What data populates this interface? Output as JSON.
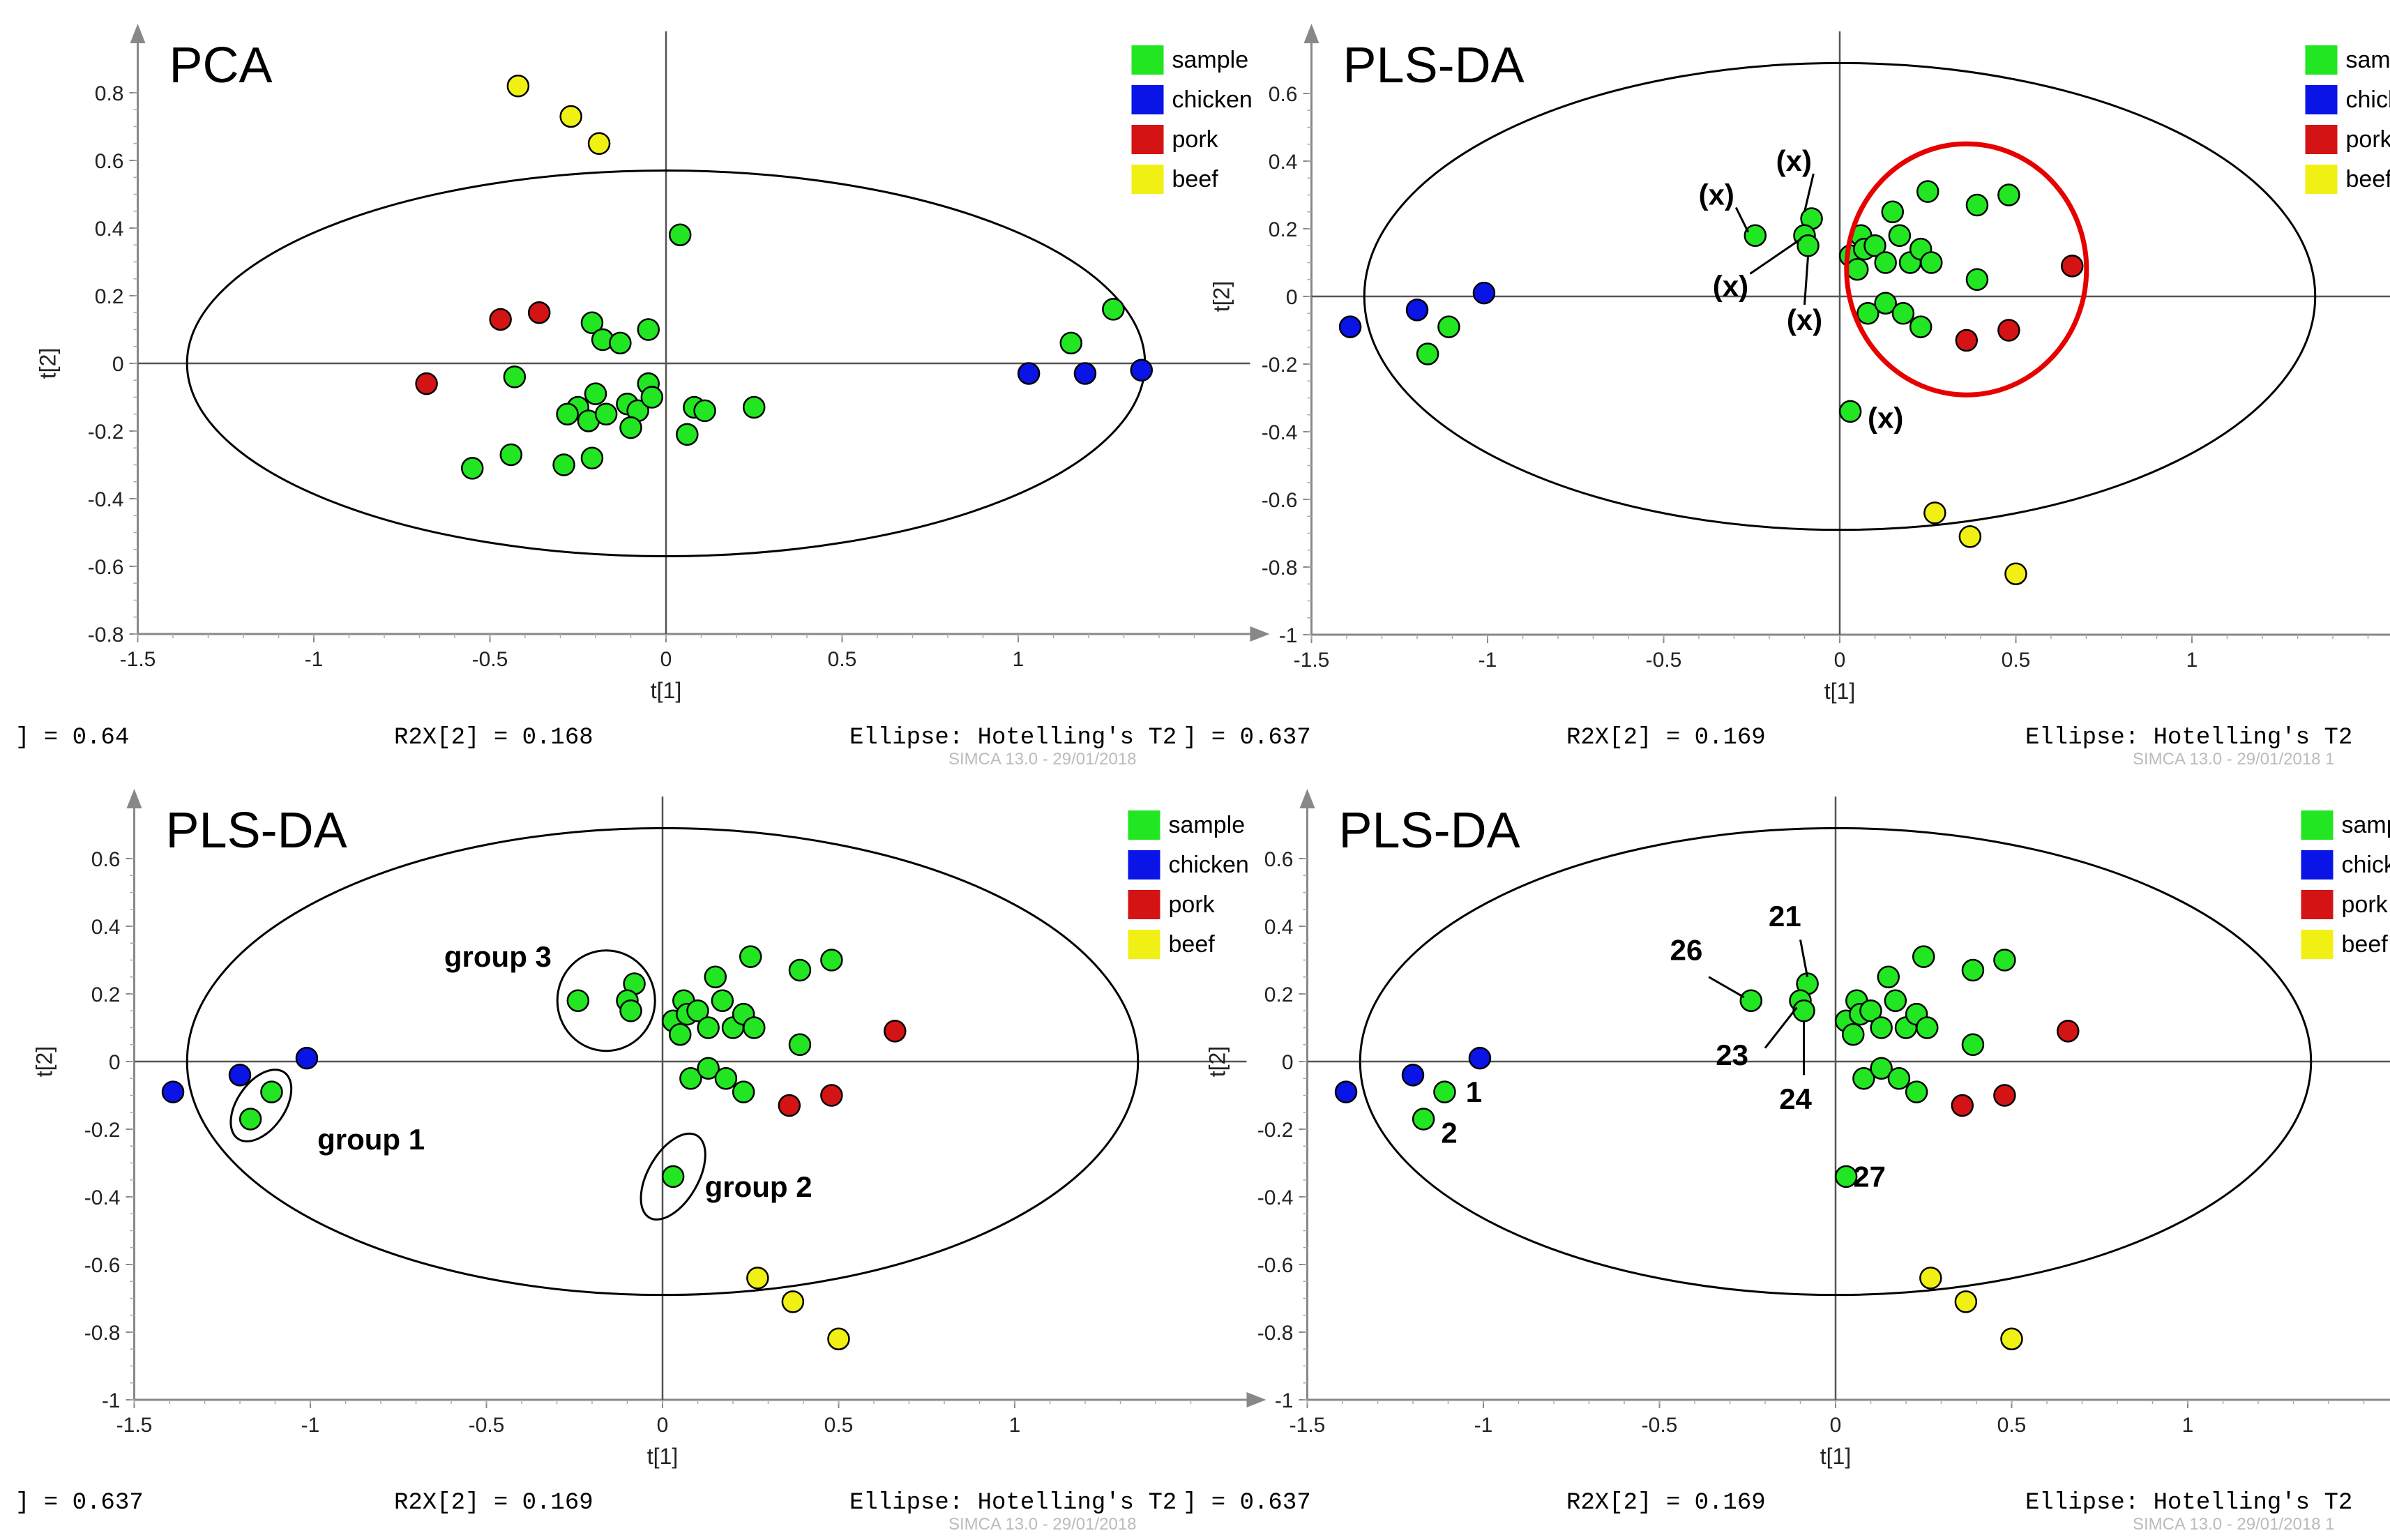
{
  "colors": {
    "sample": "#22e622",
    "chicken": "#0a14e6",
    "pork": "#d41414",
    "beef": "#f0f014",
    "pc_ellipse": "#e60000"
  },
  "chart_data": [
    {
      "type": "scatter",
      "title": "PCA",
      "xlabel": "t[1]",
      "ylabel": "t[2]",
      "xlim": [
        -1.5,
        1.5
      ],
      "ylim": [
        -0.8,
        0.8
      ],
      "xticks": [
        "-1.5",
        "-1",
        "-0.5",
        "0",
        "0.5",
        "1"
      ],
      "yticks": [
        "0.8",
        "0.6",
        "0.4",
        "0.2",
        "0",
        "-0.2",
        "-0.4",
        "-0.6",
        "-0.8"
      ],
      "legend": [
        "sample",
        "chicken",
        "pork",
        "beef"
      ],
      "footer": {
        "left": "] = 0.64",
        "mid": "R2X[2] = 0.168",
        "right": "Ellipse: Hotelling's T2",
        "watermark": "SIMCA 13.0 - 29/01/2018"
      },
      "ellipse": {
        "cx": 0,
        "cy": 0,
        "rx": 1.36,
        "ry": 0.57
      },
      "series": [
        {
          "name": "sample",
          "points": [
            [
              0.04,
              0.38
            ],
            [
              -0.21,
              0.12
            ],
            [
              -0.18,
              0.07
            ],
            [
              -0.13,
              0.06
            ],
            [
              -0.05,
              0.1
            ],
            [
              -0.43,
              -0.04
            ],
            [
              -0.2,
              -0.09
            ],
            [
              -0.25,
              -0.13
            ],
            [
              -0.28,
              -0.15
            ],
            [
              -0.22,
              -0.17
            ],
            [
              -0.17,
              -0.15
            ],
            [
              -0.11,
              -0.12
            ],
            [
              -0.08,
              -0.14
            ],
            [
              -0.1,
              -0.19
            ],
            [
              -0.05,
              -0.06
            ],
            [
              -0.04,
              -0.1
            ],
            [
              0.08,
              -0.13
            ],
            [
              0.11,
              -0.14
            ],
            [
              0.06,
              -0.21
            ],
            [
              0.25,
              -0.13
            ],
            [
              -0.44,
              -0.27
            ],
            [
              -0.55,
              -0.31
            ],
            [
              -0.29,
              -0.3
            ],
            [
              -0.21,
              -0.28
            ],
            [
              1.15,
              0.06
            ],
            [
              1.27,
              0.16
            ]
          ]
        },
        {
          "name": "chicken",
          "points": [
            [
              1.03,
              -0.03
            ],
            [
              1.19,
              -0.03
            ],
            [
              1.35,
              -0.02
            ]
          ]
        },
        {
          "name": "pork",
          "points": [
            [
              -0.47,
              0.13
            ],
            [
              -0.36,
              0.15
            ],
            [
              -0.68,
              -0.06
            ]
          ]
        },
        {
          "name": "beef",
          "points": [
            [
              -0.42,
              0.82
            ],
            [
              -0.27,
              0.73
            ],
            [
              -0.19,
              0.65
            ]
          ]
        }
      ]
    },
    {
      "type": "scatter",
      "title": "PLS-DA",
      "xlabel": "t[1]",
      "ylabel": "t[2]",
      "xlim": [
        -1.5,
        1.5
      ],
      "ylim": [
        -1,
        0.6
      ],
      "xticks": [
        "-1.5",
        "-1",
        "-0.5",
        "0",
        "0.5",
        "1"
      ],
      "yticks": [
        "0.6",
        "0.4",
        "0.2",
        "0",
        "-0.2",
        "-0.4",
        "-0.6",
        "-0.8",
        "-1"
      ],
      "legend": [
        "sample",
        "chicken",
        "pork",
        "beef"
      ],
      "footer": {
        "left": "] = 0.637",
        "mid": "R2X[2] = 0.169",
        "right": "Ellipse: Hotelling's T2",
        "watermark": "SIMCA 13.0 - 29/01/2018 1"
      },
      "ellipse": {
        "cx": 0,
        "cy": 0,
        "rx": 1.35,
        "ry": 0.69
      },
      "series": [
        {
          "name": "sample",
          "points": [
            [
              -0.24,
              0.18
            ],
            [
              -0.08,
              0.23
            ],
            [
              -0.1,
              0.18
            ],
            [
              -0.09,
              0.15
            ],
            [
              0.03,
              0.12
            ],
            [
              0.06,
              0.18
            ],
            [
              0.07,
              0.14
            ],
            [
              0.05,
              0.08
            ],
            [
              0.1,
              0.15
            ],
            [
              0.13,
              0.1
            ],
            [
              0.17,
              0.18
            ],
            [
              0.15,
              0.25
            ],
            [
              0.25,
              0.31
            ],
            [
              0.39,
              0.27
            ],
            [
              0.48,
              0.3
            ],
            [
              0.2,
              0.1
            ],
            [
              0.23,
              0.14
            ],
            [
              0.26,
              0.1
            ],
            [
              0.39,
              0.05
            ],
            [
              0.08,
              -0.05
            ],
            [
              0.13,
              -0.02
            ],
            [
              0.18,
              -0.05
            ],
            [
              0.23,
              -0.09
            ],
            [
              0.03,
              -0.34
            ],
            [
              -1.11,
              -0.09
            ],
            [
              -1.17,
              -0.17
            ]
          ]
        },
        {
          "name": "chicken",
          "points": [
            [
              -1.39,
              -0.09
            ],
            [
              -1.2,
              -0.04
            ],
            [
              -1.01,
              0.01
            ]
          ]
        },
        {
          "name": "pork",
          "points": [
            [
              0.66,
              0.09
            ],
            [
              0.48,
              -0.1
            ],
            [
              0.36,
              -0.13
            ]
          ]
        },
        {
          "name": "beef",
          "points": [
            [
              0.27,
              -0.64
            ],
            [
              0.37,
              -0.71
            ],
            [
              0.5,
              -0.82
            ]
          ]
        }
      ],
      "annotations": [
        "(x)",
        "(x)",
        "(x)",
        "(x)",
        "(x)"
      ]
    },
    {
      "type": "scatter",
      "title": "PLS-DA",
      "xlabel": "t[1]",
      "ylabel": "t[2]",
      "xlim": [
        -1.5,
        1.5
      ],
      "ylim": [
        -1,
        0.6
      ],
      "xticks": [
        "-1.5",
        "-1",
        "-0.5",
        "0",
        "0.5",
        "1"
      ],
      "yticks": [
        "0.6",
        "0.4",
        "0.2",
        "0",
        "-0.2",
        "-0.4",
        "-0.6",
        "-0.8",
        "-1"
      ],
      "legend": [
        "sample",
        "chicken",
        "pork",
        "beef"
      ],
      "footer": {
        "left": "] = 0.637",
        "mid": "R2X[2] = 0.169",
        "right": "Ellipse: Hotelling's T2",
        "watermark": "SIMCA 13.0 - 29/01/2018"
      },
      "ellipse": {
        "cx": 0,
        "cy": 0,
        "rx": 1.35,
        "ry": 0.69
      },
      "series": [
        {
          "name": "sample",
          "points": [
            [
              -0.24,
              0.18
            ],
            [
              -0.08,
              0.23
            ],
            [
              -0.1,
              0.18
            ],
            [
              -0.09,
              0.15
            ],
            [
              0.03,
              0.12
            ],
            [
              0.06,
              0.18
            ],
            [
              0.07,
              0.14
            ],
            [
              0.05,
              0.08
            ],
            [
              0.1,
              0.15
            ],
            [
              0.13,
              0.1
            ],
            [
              0.17,
              0.18
            ],
            [
              0.15,
              0.25
            ],
            [
              0.25,
              0.31
            ],
            [
              0.39,
              0.27
            ],
            [
              0.48,
              0.3
            ],
            [
              0.2,
              0.1
            ],
            [
              0.23,
              0.14
            ],
            [
              0.26,
              0.1
            ],
            [
              0.39,
              0.05
            ],
            [
              0.08,
              -0.05
            ],
            [
              0.13,
              -0.02
            ],
            [
              0.18,
              -0.05
            ],
            [
              0.23,
              -0.09
            ],
            [
              0.03,
              -0.34
            ],
            [
              -1.11,
              -0.09
            ],
            [
              -1.17,
              -0.17
            ]
          ]
        },
        {
          "name": "chicken",
          "points": [
            [
              -1.39,
              -0.09
            ],
            [
              -1.2,
              -0.04
            ],
            [
              -1.01,
              0.01
            ]
          ]
        },
        {
          "name": "pork",
          "points": [
            [
              0.66,
              0.09
            ],
            [
              0.48,
              -0.1
            ],
            [
              0.36,
              -0.13
            ]
          ]
        },
        {
          "name": "beef",
          "points": [
            [
              0.27,
              -0.64
            ],
            [
              0.37,
              -0.71
            ],
            [
              0.5,
              -0.82
            ]
          ]
        }
      ],
      "annotations": [
        "group 1",
        "group 2",
        "group 3"
      ]
    },
    {
      "type": "scatter",
      "title": "PLS-DA",
      "xlabel": "t[1]",
      "ylabel": "t[2]",
      "xlim": [
        -1.5,
        1.5
      ],
      "ylim": [
        -1,
        0.6
      ],
      "xticks": [
        "-1.5",
        "-1",
        "-0.5",
        "0",
        "0.5",
        "1"
      ],
      "yticks": [
        "0.6",
        "0.4",
        "0.2",
        "0",
        "-0.2",
        "-0.4",
        "-0.6",
        "-0.8",
        "-1"
      ],
      "legend": [
        "sample",
        "chicken",
        "pork",
        "beef"
      ],
      "footer": {
        "left": "] = 0.637",
        "mid": "R2X[2] = 0.169",
        "right": "Ellipse: Hotelling's T2",
        "watermark": "SIMCA 13.0 - 29/01/2018 1"
      },
      "ellipse": {
        "cx": 0,
        "cy": 0,
        "rx": 1.35,
        "ry": 0.69
      },
      "series": [
        {
          "name": "sample",
          "points": [
            [
              -0.24,
              0.18
            ],
            [
              -0.08,
              0.23
            ],
            [
              -0.1,
              0.18
            ],
            [
              -0.09,
              0.15
            ],
            [
              0.03,
              0.12
            ],
            [
              0.06,
              0.18
            ],
            [
              0.07,
              0.14
            ],
            [
              0.05,
              0.08
            ],
            [
              0.1,
              0.15
            ],
            [
              0.13,
              0.1
            ],
            [
              0.17,
              0.18
            ],
            [
              0.15,
              0.25
            ],
            [
              0.25,
              0.31
            ],
            [
              0.39,
              0.27
            ],
            [
              0.48,
              0.3
            ],
            [
              0.2,
              0.1
            ],
            [
              0.23,
              0.14
            ],
            [
              0.26,
              0.1
            ],
            [
              0.39,
              0.05
            ],
            [
              0.08,
              -0.05
            ],
            [
              0.13,
              -0.02
            ],
            [
              0.18,
              -0.05
            ],
            [
              0.23,
              -0.09
            ],
            [
              0.03,
              -0.34
            ],
            [
              -1.11,
              -0.09
            ],
            [
              -1.17,
              -0.17
            ]
          ]
        },
        {
          "name": "chicken",
          "points": [
            [
              -1.39,
              -0.09
            ],
            [
              -1.2,
              -0.04
            ],
            [
              -1.01,
              0.01
            ]
          ]
        },
        {
          "name": "pork",
          "points": [
            [
              0.66,
              0.09
            ],
            [
              0.48,
              -0.1
            ],
            [
              0.36,
              -0.13
            ]
          ]
        },
        {
          "name": "beef",
          "points": [
            [
              0.27,
              -0.64
            ],
            [
              0.37,
              -0.71
            ],
            [
              0.5,
              -0.82
            ]
          ]
        }
      ],
      "annotations": [
        "1",
        "2",
        "21",
        "23",
        "24",
        "26",
        "27"
      ]
    }
  ]
}
